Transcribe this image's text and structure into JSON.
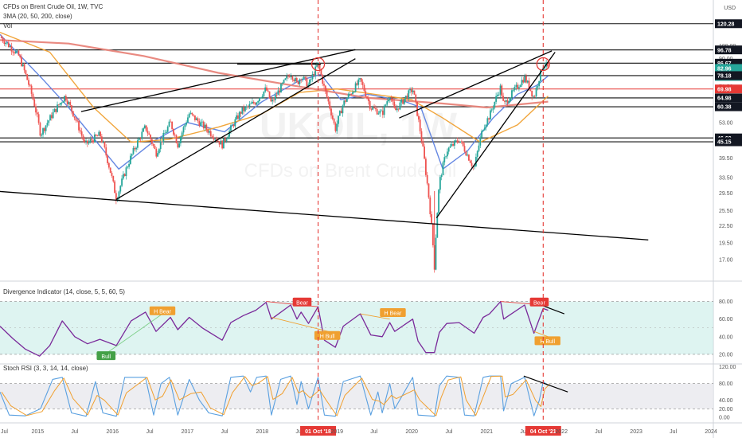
{
  "chart_data": [
    {
      "type": "line",
      "title": "CFDs on Brent Crude Oil, 1W, TVC",
      "subtitle": "",
      "series_labels": [
        "3MA (20, 50, 200, close)",
        "Vol"
      ],
      "watermark_symbol": "UKOIL, 1W",
      "watermark_name": "CFDs on Brent Crude Oil",
      "currency": "USD",
      "price_scale_ticks": [
        120.0,
        100.0,
        90.0,
        80.0,
        71.5,
        53.0,
        39.5,
        33.5,
        29.5,
        25.5,
        22.5,
        19.5,
        17.0
      ],
      "price_tags": [
        {
          "value": "120.28",
          "style": "dark"
        },
        {
          "value": "96.78",
          "style": "dark"
        },
        {
          "value": "86.67",
          "style": "dark"
        },
        {
          "value": "82.96",
          "style": "teal"
        },
        {
          "value": "3d 16h",
          "style": "teal"
        },
        {
          "value": "78.18",
          "style": "dark"
        },
        {
          "value": "69.98",
          "style": "red"
        },
        {
          "value": "64.98",
          "style": "dark"
        },
        {
          "value": "60.38",
          "style": "dark"
        },
        {
          "value": "46.62",
          "style": "dark"
        },
        {
          "value": "45.15",
          "style": "dark"
        }
      ],
      "x_labels": [
        "Jul",
        "2015",
        "Jul",
        "2016",
        "Jul",
        "2017",
        "Jul",
        "2018",
        "Jul",
        "01 Oct '18",
        "2019",
        "Jul",
        "2020",
        "Jul",
        "2021",
        "Jul",
        "04 Oct '21",
        "2022",
        "Jul",
        "2023",
        "Jul",
        "2024"
      ],
      "price_path": [
        [
          "2014-07-01",
          108
        ],
        [
          "2014-10-01",
          92
        ],
        [
          "2014-12-15",
          62
        ],
        [
          "2015-01-15",
          48
        ],
        [
          "2015-05-15",
          66
        ],
        [
          "2015-08-20",
          44
        ],
        [
          "2015-11-01",
          48
        ],
        [
          "2016-01-20",
          28
        ],
        [
          "2016-04-01",
          40
        ],
        [
          "2016-06-10",
          51
        ],
        [
          "2016-08-01",
          41
        ],
        [
          "2016-10-10",
          53
        ],
        [
          "2016-11-15",
          44
        ],
        [
          "2017-01-10",
          57
        ],
        [
          "2017-06-20",
          44
        ],
        [
          "2017-09-20",
          58
        ],
        [
          "2017-12-01",
          63
        ],
        [
          "2018-01-20",
          70
        ],
        [
          "2018-02-15",
          62
        ],
        [
          "2018-05-20",
          80
        ],
        [
          "2018-06-20",
          73
        ],
        [
          "2018-07-10",
          78
        ],
        [
          "2018-08-15",
          72
        ],
        [
          "2018-10-01",
          86
        ],
        [
          "2018-11-01",
          70
        ],
        [
          "2018-12-24",
          50
        ],
        [
          "2019-02-01",
          62
        ],
        [
          "2019-04-25",
          75
        ],
        [
          "2019-06-15",
          60
        ],
        [
          "2019-08-10",
          57
        ],
        [
          "2019-09-16",
          67
        ],
        [
          "2019-10-10",
          58
        ],
        [
          "2020-01-06",
          70
        ],
        [
          "2020-02-01",
          55
        ],
        [
          "2020-03-10",
          35
        ],
        [
          "2020-04-21",
          16
        ],
        [
          "2020-05-15",
          32
        ],
        [
          "2020-06-20",
          42
        ],
        [
          "2020-08-20",
          46
        ],
        [
          "2020-11-01",
          36
        ],
        [
          "2020-12-15",
          51
        ],
        [
          "2021-01-15",
          56
        ],
        [
          "2021-03-10",
          71
        ],
        [
          "2021-03-25",
          61
        ],
        [
          "2021-07-05",
          77
        ],
        [
          "2021-08-20",
          65
        ],
        [
          "2021-10-04",
          86
        ],
        [
          "2021-10-18",
          85
        ],
        [
          "2021-10-28",
          83
        ]
      ],
      "moving_averages": [
        {
          "name": "20",
          "color": "#5b7fe0",
          "values": [
            [
              "2014-07-01",
              110
            ],
            [
              "2015-02-01",
              75
            ],
            [
              "2015-06-01",
              60
            ],
            [
              "2016-02-01",
              36
            ],
            [
              "2016-08-01",
              46
            ],
            [
              "2017-01-01",
              53
            ],
            [
              "2017-07-01",
              49
            ],
            [
              "2018-01-01",
              63
            ],
            [
              "2018-07-01",
              75
            ],
            [
              "2018-10-15",
              79
            ],
            [
              "2019-01-20",
              64
            ],
            [
              "2019-06-01",
              67
            ],
            [
              "2019-12-01",
              63
            ],
            [
              "2020-02-15",
              60
            ],
            [
              "2020-06-01",
              36
            ],
            [
              "2020-10-01",
              42
            ],
            [
              "2021-02-01",
              55
            ],
            [
              "2021-06-01",
              67
            ],
            [
              "2021-09-01",
              72
            ],
            [
              "2021-10-28",
              78
            ]
          ]
        },
        {
          "name": "50",
          "color": "#f0a030",
          "values": [
            [
              "2014-07-01",
              112
            ],
            [
              "2015-03-01",
              95
            ],
            [
              "2015-10-01",
              60
            ],
            [
              "2016-04-01",
              45
            ],
            [
              "2016-10-01",
              46
            ],
            [
              "2017-06-01",
              51
            ],
            [
              "2018-01-01",
              57
            ],
            [
              "2018-07-01",
              68
            ],
            [
              "2019-01-01",
              70
            ],
            [
              "2019-07-01",
              67
            ],
            [
              "2020-01-01",
              64
            ],
            [
              "2020-06-01",
              55
            ],
            [
              "2020-12-01",
              45
            ],
            [
              "2021-06-01",
              52
            ],
            [
              "2021-10-28",
              66
            ]
          ]
        },
        {
          "name": "200",
          "color": "#e8847a",
          "values": [
            [
              "2014-07-01",
              105
            ],
            [
              "2015-06-01",
              102
            ],
            [
              "2016-06-01",
              92
            ],
            [
              "2017-06-01",
              80
            ],
            [
              "2018-06-01",
              72
            ],
            [
              "2019-06-01",
              65
            ],
            [
              "2020-06-01",
              62
            ],
            [
              "2021-01-01",
              60
            ],
            [
              "2021-10-28",
              63
            ]
          ]
        }
      ],
      "support_resistance": [
        "96.78",
        "86.67",
        "78.18",
        "69.98",
        "64.98",
        "60.38",
        "46.62",
        "45.15"
      ],
      "trendlines": [
        {
          "x0": "2015-08-01",
          "y0": 58,
          "x1": "2019-04-01",
          "y1": 97
        },
        {
          "x0": "2016-01-20",
          "y0": 28,
          "x1": "2019-04-01",
          "y1": 90
        },
        {
          "x0": "2019-11-01",
          "y0": 55,
          "x1": "2021-11-15",
          "y1": 96
        },
        {
          "x0": "2020-05-01",
          "y0": 24,
          "x1": "2021-12-01",
          "y1": 95
        },
        {
          "x0": "2014-06-01",
          "y0": 30,
          "x1": "2023-03-01",
          "y1": 20
        },
        {
          "x0": "2017-09-01",
          "y0": 86,
          "x1": "2018-10-15",
          "y1": 86
        }
      ],
      "markers": [
        "2018-10-01",
        "2021-10-04"
      ]
    },
    {
      "type": "line",
      "title": "Divergence Indicator (14, close, 5, 5, 60, 5)",
      "y_ticks": [
        80.0,
        60.0,
        40.0,
        20.0
      ],
      "ylim": [
        10,
        95
      ],
      "band": [
        20,
        80
      ],
      "annotations": [
        {
          "label": "Bull",
          "date": "2015-12-01",
          "value": 18,
          "color": "green"
        },
        {
          "label": "H Bear",
          "date": "2016-09-01",
          "value": 69,
          "color": "orange"
        },
        {
          "label": "Bear",
          "date": "2018-07-15",
          "value": 79,
          "color": "red"
        },
        {
          "label": "H Bull",
          "date": "2018-11-15",
          "value": 41,
          "color": "orange"
        },
        {
          "label": "H Bear",
          "date": "2019-10-01",
          "value": 67,
          "color": "orange"
        },
        {
          "label": "Bear",
          "date": "2021-09-15",
          "value": 79,
          "color": "red"
        },
        {
          "label": "H Bull",
          "date": "2021-10-25",
          "value": 35,
          "color": "orange"
        }
      ],
      "rsi_path": [
        [
          "2014-07-01",
          52
        ],
        [
          "2014-09-01",
          38
        ],
        [
          "2014-11-01",
          26
        ],
        [
          "2015-01-10",
          18
        ],
        [
          "2015-03-01",
          30
        ],
        [
          "2015-05-01",
          58
        ],
        [
          "2015-07-01",
          40
        ],
        [
          "2015-09-01",
          32
        ],
        [
          "2015-11-01",
          37
        ],
        [
          "2016-01-20",
          30
        ],
        [
          "2016-04-01",
          58
        ],
        [
          "2016-06-10",
          68
        ],
        [
          "2016-08-01",
          46
        ],
        [
          "2016-10-10",
          62
        ],
        [
          "2016-11-15",
          48
        ],
        [
          "2017-01-10",
          62
        ],
        [
          "2017-03-15",
          50
        ],
        [
          "2017-06-20",
          36
        ],
        [
          "2017-08-01",
          56
        ],
        [
          "2017-10-01",
          64
        ],
        [
          "2017-12-01",
          70
        ],
        [
          "2018-01-20",
          79
        ],
        [
          "2018-02-15",
          60
        ],
        [
          "2018-05-20",
          76
        ],
        [
          "2018-06-20",
          60
        ],
        [
          "2018-07-10",
          68
        ],
        [
          "2018-08-15",
          55
        ],
        [
          "2018-10-01",
          74
        ],
        [
          "2018-11-01",
          36
        ],
        [
          "2018-12-24",
          28
        ],
        [
          "2019-02-01",
          52
        ],
        [
          "2019-04-25",
          66
        ],
        [
          "2019-06-15",
          42
        ],
        [
          "2019-08-10",
          40
        ],
        [
          "2019-09-16",
          56
        ],
        [
          "2019-10-10",
          46
        ],
        [
          "2020-01-06",
          60
        ],
        [
          "2020-02-01",
          35
        ],
        [
          "2020-03-10",
          22
        ],
        [
          "2020-04-21",
          22
        ],
        [
          "2020-05-15",
          45
        ],
        [
          "2020-06-20",
          55
        ],
        [
          "2020-08-20",
          56
        ],
        [
          "2020-11-01",
          44
        ],
        [
          "2020-12-15",
          62
        ],
        [
          "2021-01-15",
          66
        ],
        [
          "2021-03-10",
          80
        ],
        [
          "2021-03-25",
          60
        ],
        [
          "2021-07-05",
          76
        ],
        [
          "2021-08-20",
          44
        ],
        [
          "2021-10-04",
          72
        ],
        [
          "2021-10-28",
          70
        ]
      ],
      "divergence_lines": [
        {
          "x0": "2015-12-01",
          "y0": 21,
          "x1": "2016-09-01",
          "y1": 66,
          "color": "#7fd08a"
        },
        {
          "x0": "2018-01-20",
          "y0": 80,
          "x1": "2018-10-01",
          "y1": 74,
          "color": "#e44"
        },
        {
          "x0": "2018-02-15",
          "y0": 62,
          "x1": "2018-12-24",
          "y1": 44,
          "color": "#f0a030"
        },
        {
          "x0": "2019-04-25",
          "y0": 66,
          "x1": "2019-09-16",
          "y1": 60,
          "color": "#f0a030"
        },
        {
          "x0": "2021-03-10",
          "y0": 80,
          "x1": "2021-10-04",
          "y1": 76,
          "color": "#e44"
        },
        {
          "x0": "2021-08-20",
          "y0": 46,
          "x1": "2021-10-28",
          "y1": 40,
          "color": "#f0a030"
        },
        {
          "x0": "2021-10-04",
          "y0": 75,
          "x1": "2022-01-15",
          "y1": 66,
          "color": "#000"
        }
      ]
    },
    {
      "type": "line",
      "title": "Stoch RSI (3, 3, 14, 14, close)",
      "y_ticks": [
        120.0,
        80.0,
        40.0,
        20.0,
        0.0
      ],
      "ylim": [
        -8,
        125
      ],
      "band": [
        20,
        80
      ],
      "k_color": "#5aa0e0",
      "d_color": "#f0a030",
      "trendline": {
        "x0": "2021-07-01",
        "y0": 98,
        "x1": "2022-02-01",
        "y1": 60
      },
      "stoch_path": [
        [
          "2014-07-01",
          60
        ],
        [
          "2014-08-15",
          5
        ],
        [
          "2014-11-01",
          3
        ],
        [
          "2015-01-15",
          20
        ],
        [
          "2015-03-15",
          90
        ],
        [
          "2015-05-01",
          95
        ],
        [
          "2015-06-15",
          10
        ],
        [
          "2015-08-25",
          2
        ],
        [
          "2015-10-10",
          85
        ],
        [
          "2015-11-15",
          10
        ],
        [
          "2016-01-20",
          2
        ],
        [
          "2016-03-01",
          95
        ],
        [
          "2016-06-10",
          95
        ],
        [
          "2016-07-20",
          5
        ],
        [
          "2016-08-25",
          80
        ],
        [
          "2016-10-05",
          95
        ],
        [
          "2016-11-15",
          5
        ],
        [
          "2017-01-10",
          90
        ],
        [
          "2017-03-01",
          40
        ],
        [
          "2017-04-15",
          10
        ],
        [
          "2017-06-20",
          3
        ],
        [
          "2017-08-01",
          95
        ],
        [
          "2017-10-01",
          98
        ],
        [
          "2017-11-05",
          60
        ],
        [
          "2017-12-05",
          95
        ],
        [
          "2018-01-20",
          98
        ],
        [
          "2018-02-15",
          5
        ],
        [
          "2018-04-01",
          90
        ],
        [
          "2018-05-20",
          98
        ],
        [
          "2018-06-20",
          30
        ],
        [
          "2018-07-10",
          85
        ],
        [
          "2018-08-15",
          20
        ],
        [
          "2018-10-01",
          95
        ],
        [
          "2018-11-01",
          5
        ],
        [
          "2018-12-24",
          2
        ],
        [
          "2019-02-01",
          85
        ],
        [
          "2019-04-25",
          98
        ],
        [
          "2019-06-15",
          5
        ],
        [
          "2019-07-20",
          60
        ],
        [
          "2019-08-10",
          10
        ],
        [
          "2019-09-16",
          80
        ],
        [
          "2019-10-10",
          20
        ],
        [
          "2020-01-06",
          95
        ],
        [
          "2020-02-01",
          5
        ],
        [
          "2020-04-21",
          2
        ],
        [
          "2020-05-15",
          75
        ],
        [
          "2020-06-20",
          98
        ],
        [
          "2020-08-20",
          95
        ],
        [
          "2020-09-15",
          5
        ],
        [
          "2020-11-01",
          3
        ],
        [
          "2020-12-15",
          95
        ],
        [
          "2021-01-15",
          98
        ],
        [
          "2021-03-10",
          98
        ],
        [
          "2021-03-25",
          15
        ],
        [
          "2021-05-01",
          80
        ],
        [
          "2021-07-05",
          95
        ],
        [
          "2021-08-20",
          3
        ],
        [
          "2021-09-15",
          40
        ],
        [
          "2021-10-04",
          85
        ],
        [
          "2021-10-28",
          75
        ]
      ]
    }
  ]
}
